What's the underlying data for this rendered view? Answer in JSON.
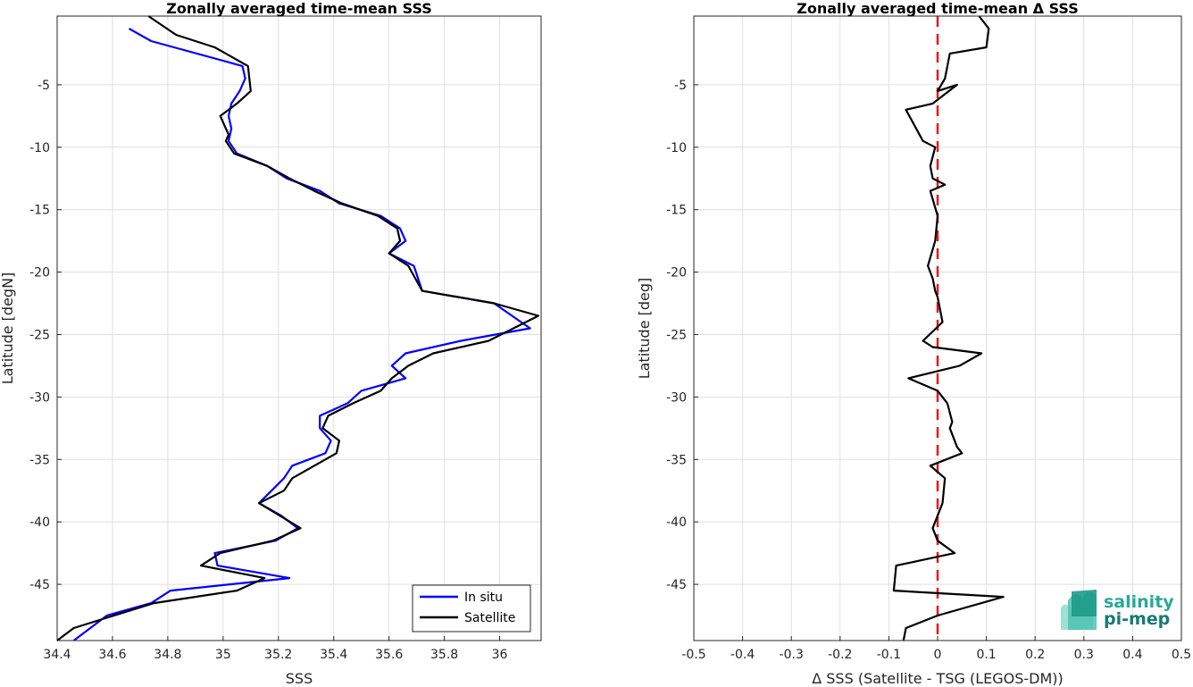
{
  "chart_data": [
    {
      "type": "line",
      "title": "Zonally averaged time-mean SSS",
      "xlabel": "SSS",
      "ylabel": "Latitude [degN]",
      "xlim": [
        34.4,
        36.15
      ],
      "ylim": [
        -49.5,
        0.5
      ],
      "xticks": [
        34.4,
        34.6,
        34.8,
        35,
        35.2,
        35.4,
        35.6,
        35.8,
        36
      ],
      "xtick_labels": [
        "34.4",
        "34.6",
        "34.8",
        "35",
        "35.2",
        "35.4",
        "35.6",
        "35.8",
        "36"
      ],
      "yticks": [
        -5,
        -10,
        -15,
        -20,
        -25,
        -30,
        -35,
        -40,
        -45
      ],
      "ytick_labels": [
        "-5",
        "-10",
        "-15",
        "-20",
        "-25",
        "-30",
        "-35",
        "-40",
        "-45"
      ],
      "grid": true,
      "legend_position": "bottom-right",
      "series": [
        {
          "name": "In situ",
          "color": "#0000ff",
          "x": [
            34.66,
            34.74,
            35.07,
            35.08,
            35.06,
            35.03,
            35.02,
            35.03,
            35.02,
            35.05,
            35.16,
            35.23,
            35.35,
            35.42,
            35.57,
            35.64,
            35.66,
            35.6,
            35.69,
            35.72,
            35.98,
            36.11,
            35.86,
            35.66,
            35.61,
            35.66,
            35.5,
            35.45,
            35.35,
            35.35,
            35.39,
            35.37,
            35.25,
            35.22,
            35.13,
            35.21,
            35.27,
            35.19,
            34.97,
            34.98,
            35.24,
            34.81,
            34.74,
            34.58,
            34.46
          ],
          "y": [
            -0.5,
            -1.5,
            -3.5,
            -4.5,
            -5.5,
            -6.5,
            -7.5,
            -8.5,
            -9.5,
            -10.5,
            -11.5,
            -12.5,
            -13.5,
            -14.5,
            -15.5,
            -16.5,
            -17.5,
            -18.5,
            -19.5,
            -21.5,
            -22.5,
            -24.5,
            -25.5,
            -26.5,
            -27.5,
            -28.5,
            -29.5,
            -30.5,
            -31.5,
            -32.5,
            -33.5,
            -34.5,
            -35.5,
            -36.5,
            -38.5,
            -39.5,
            -40.5,
            -41.5,
            -42.5,
            -43.5,
            -44.5,
            -45.5,
            -46.5,
            -47.5,
            -49.5
          ]
        },
        {
          "name": "Satellite",
          "color": "#000000",
          "x": [
            34.73,
            34.83,
            34.97,
            35.09,
            35.1,
            35.05,
            34.99,
            35.02,
            35.01,
            35.04,
            35.16,
            35.24,
            35.33,
            35.43,
            35.56,
            35.63,
            35.64,
            35.6,
            35.67,
            35.72,
            35.98,
            36.14,
            35.96,
            35.76,
            35.67,
            35.61,
            35.57,
            35.47,
            35.38,
            35.36,
            35.42,
            35.41,
            35.33,
            35.25,
            35.22,
            35.13,
            35.28,
            35.18,
            34.99,
            34.92,
            35.15,
            35.05,
            34.75,
            34.46,
            34.4
          ],
          "y": [
            0.5,
            -1.0,
            -2.0,
            -3.5,
            -5.5,
            -6.5,
            -7.5,
            -9.0,
            -9.5,
            -10.5,
            -11.5,
            -12.5,
            -13.5,
            -14.5,
            -15.5,
            -16.5,
            -17.5,
            -18.5,
            -19.5,
            -21.5,
            -22.5,
            -23.5,
            -25.5,
            -26.5,
            -27.5,
            -28.5,
            -29.5,
            -30.5,
            -31.5,
            -32.5,
            -33.5,
            -34.5,
            -35.5,
            -36.5,
            -37.5,
            -38.5,
            -40.5,
            -41.5,
            -42.5,
            -43.5,
            -44.5,
            -45.5,
            -46.5,
            -48.5,
            -49.5
          ]
        }
      ]
    },
    {
      "type": "line",
      "title": "Zonally averaged time-mean Δ SSS",
      "xlabel": "Δ SSS (Satellite - TSG (LEGOS-DM))",
      "ylabel": "Latitude [deg]",
      "xlim": [
        -0.5,
        0.5
      ],
      "ylim": [
        -49.5,
        0.5
      ],
      "xticks": [
        -0.5,
        -0.4,
        -0.3,
        -0.2,
        -0.1,
        0,
        0.1,
        0.2,
        0.3,
        0.4,
        0.5
      ],
      "xtick_labels": [
        "-0.5",
        "-0.4",
        "-0.3",
        "-0.2",
        "-0.1",
        "0",
        "0.1",
        "0.2",
        "0.3",
        "0.4",
        "0.5"
      ],
      "yticks": [
        -5,
        -10,
        -15,
        -20,
        -25,
        -30,
        -35,
        -40,
        -45
      ],
      "ytick_labels": [
        "-5",
        "-10",
        "-15",
        "-20",
        "-25",
        "-30",
        "-35",
        "-40",
        "-45"
      ],
      "grid": true,
      "reference_line": {
        "x": 0,
        "color": "#e31a1c",
        "style": "dashed"
      },
      "series": [
        {
          "name": "",
          "color": "#000000",
          "x": [
            0.085,
            0.105,
            0.1,
            0.025,
            0.015,
            0.0,
            0.04,
            -0.01,
            -0.065,
            -0.03,
            -0.005,
            -0.015,
            -0.01,
            0.015,
            -0.015,
            0.0,
            -0.005,
            -0.02,
            -0.01,
            -0.005,
            0.0,
            0.01,
            -0.03,
            -0.01,
            0.09,
            0.045,
            -0.06,
            0.0,
            0.02,
            0.03,
            0.025,
            0.04,
            0.05,
            -0.015,
            0.015,
            0.01,
            0.0,
            -0.01,
            0.0,
            0.035,
            -0.085,
            -0.09,
            0.135,
            0.0,
            -0.065,
            -0.07
          ],
          "y": [
            0.5,
            -0.5,
            -2.0,
            -2.5,
            -4.5,
            -5.5,
            -5.0,
            -6.5,
            -7.0,
            -9.5,
            -10.0,
            -11.5,
            -12.5,
            -13.0,
            -13.5,
            -15.5,
            -17.5,
            -19.5,
            -20.5,
            -21.5,
            -22.0,
            -24.0,
            -25.5,
            -26.0,
            -26.5,
            -27.5,
            -28.5,
            -29.5,
            -30.5,
            -32.0,
            -32.5,
            -34.0,
            -34.5,
            -35.5,
            -36.5,
            -38.5,
            -39.5,
            -40.5,
            -41.5,
            -42.5,
            -43.5,
            -45.5,
            -46.0,
            -47.5,
            -48.5,
            -49.5
          ]
        }
      ]
    }
  ]
}
